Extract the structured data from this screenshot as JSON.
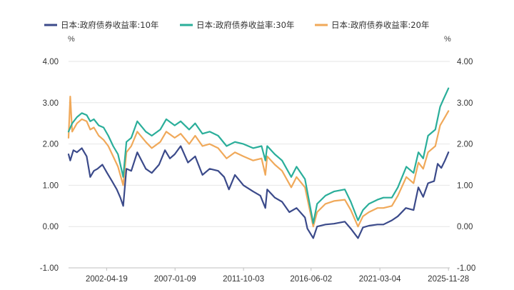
{
  "chart_data": {
    "type": "line",
    "legend_position": "top-left",
    "grid": true,
    "y_unit_left": "%",
    "y_unit_right": "%",
    "ylim": [
      -1.0,
      4.0
    ],
    "y_ticks": [
      "4.00",
      "3.00",
      "2.00",
      "1.00",
      "0.00",
      "-1.00"
    ],
    "y_tick_values": [
      4,
      3,
      2,
      1,
      0,
      -1
    ],
    "x_ticks": [
      "2002-04-19",
      "2007-01-09",
      "2011-10-03",
      "2016-06-02",
      "2021-03-04",
      "2025-11-28"
    ],
    "xlim": [
      "1999-09-01",
      "2025-12-31"
    ],
    "series": [
      {
        "name": "日本:政府债券收益率:10年",
        "color": "#3b4a8a",
        "x": [
          "1999-09-01",
          "1999-10-15",
          "2000-01-01",
          "2000-04-01",
          "2000-08-01",
          "2000-12-01",
          "2001-03-01",
          "2001-06-01",
          "2001-09-01",
          "2002-01-01",
          "2002-05-01",
          "2002-09-01",
          "2003-01-01",
          "2003-04-01",
          "2003-06-12",
          "2003-09-01",
          "2004-01-01",
          "2004-06-01",
          "2005-01-01",
          "2005-06-01",
          "2005-12-01",
          "2006-05-01",
          "2006-09-01",
          "2007-01-01",
          "2007-06-01",
          "2007-12-01",
          "2008-06-01",
          "2008-12-01",
          "2009-06-01",
          "2010-01-01",
          "2010-06-01",
          "2010-10-01",
          "2011-03-01",
          "2011-10-01",
          "2012-06-01",
          "2012-12-01",
          "2013-04-05",
          "2013-05-23",
          "2013-12-01",
          "2014-06-01",
          "2014-12-01",
          "2015-06-01",
          "2016-01-01",
          "2016-03-01",
          "2016-07-27",
          "2016-11-01",
          "2017-06-01",
          "2018-01-01",
          "2018-10-01",
          "2019-03-01",
          "2019-08-30",
          "2020-01-01",
          "2020-06-01",
          "2021-01-01",
          "2021-06-01",
          "2022-01-01",
          "2022-06-01",
          "2022-12-20",
          "2023-07-01",
          "2023-10-31",
          "2024-03-01",
          "2024-07-01",
          "2024-12-01",
          "2025-03-01",
          "2025-06-01",
          "2025-09-01",
          "2025-11-28"
        ],
        "values": [
          1.75,
          1.6,
          1.85,
          1.8,
          1.9,
          1.7,
          1.2,
          1.35,
          1.4,
          1.5,
          1.3,
          1.1,
          0.9,
          0.7,
          0.5,
          1.4,
          1.35,
          1.8,
          1.4,
          1.3,
          1.5,
          1.85,
          1.65,
          1.75,
          1.95,
          1.55,
          1.7,
          1.25,
          1.4,
          1.35,
          1.2,
          0.9,
          1.25,
          1.0,
          0.85,
          0.75,
          0.45,
          0.9,
          0.7,
          0.6,
          0.35,
          0.45,
          0.22,
          -0.05,
          -0.28,
          0.0,
          0.05,
          0.07,
          0.12,
          -0.05,
          -0.28,
          -0.02,
          0.02,
          0.05,
          0.05,
          0.15,
          0.25,
          0.45,
          0.4,
          0.95,
          0.72,
          1.05,
          1.1,
          1.52,
          1.42,
          1.6,
          1.8
        ]
      },
      {
        "name": "日本:政府债券收益率:30年",
        "color": "#2aae9a",
        "x": [
          "1999-09-01",
          "1999-12-01",
          "2000-04-01",
          "2000-08-01",
          "2000-12-01",
          "2001-03-01",
          "2001-06-01",
          "2001-10-01",
          "2002-02-01",
          "2002-06-01",
          "2002-10-01",
          "2003-02-01",
          "2003-06-12",
          "2003-09-01",
          "2004-01-01",
          "2004-06-01",
          "2005-01-01",
          "2005-06-01",
          "2006-01-01",
          "2006-06-01",
          "2007-01-01",
          "2007-06-01",
          "2008-01-01",
          "2008-06-01",
          "2008-12-01",
          "2009-06-01",
          "2010-01-01",
          "2010-08-01",
          "2011-03-01",
          "2011-10-01",
          "2012-06-01",
          "2013-01-01",
          "2013-04-05",
          "2013-05-23",
          "2013-12-01",
          "2014-06-01",
          "2015-01-20",
          "2015-06-01",
          "2016-01-01",
          "2016-07-27",
          "2016-11-01",
          "2017-06-01",
          "2018-01-01",
          "2018-10-01",
          "2019-03-01",
          "2019-08-30",
          "2020-01-01",
          "2020-06-01",
          "2021-01-01",
          "2021-06-01",
          "2022-01-01",
          "2022-06-01",
          "2023-01-01",
          "2023-07-01",
          "2023-11-01",
          "2024-03-01",
          "2024-07-01",
          "2025-01-01",
          "2025-05-01",
          "2025-08-01",
          "2025-11-28"
        ],
        "values": [
          2.3,
          2.5,
          2.65,
          2.75,
          2.7,
          2.55,
          2.6,
          2.45,
          2.4,
          2.2,
          1.95,
          1.75,
          1.2,
          2.05,
          2.15,
          2.55,
          2.3,
          2.2,
          2.35,
          2.6,
          2.45,
          2.55,
          2.35,
          2.5,
          2.25,
          2.3,
          2.2,
          1.95,
          2.05,
          2.0,
          1.9,
          1.95,
          1.6,
          1.95,
          1.75,
          1.6,
          1.2,
          1.45,
          1.15,
          0.08,
          0.55,
          0.75,
          0.85,
          0.9,
          0.6,
          0.15,
          0.4,
          0.55,
          0.65,
          0.7,
          0.7,
          0.95,
          1.45,
          1.3,
          1.8,
          1.65,
          2.2,
          2.35,
          2.9,
          3.1,
          3.35
        ]
      },
      {
        "name": "日本:政府债券收益率:20年",
        "color": "#f0a95a",
        "x": [
          "1999-09-01",
          "1999-10-15",
          "1999-12-01",
          "2000-04-01",
          "2000-08-01",
          "2000-12-01",
          "2001-03-01",
          "2001-06-01",
          "2001-10-01",
          "2002-02-01",
          "2002-06-01",
          "2002-10-01",
          "2003-02-01",
          "2003-06-12",
          "2003-09-01",
          "2004-01-01",
          "2004-06-01",
          "2005-01-01",
          "2005-06-01",
          "2006-01-01",
          "2006-06-01",
          "2007-01-01",
          "2007-06-01",
          "2008-01-01",
          "2008-06-01",
          "2008-12-01",
          "2009-06-01",
          "2010-01-01",
          "2010-08-01",
          "2011-03-01",
          "2011-10-01",
          "2012-06-01",
          "2013-01-01",
          "2013-04-05",
          "2013-05-23",
          "2013-12-01",
          "2014-06-01",
          "2015-01-20",
          "2015-06-01",
          "2016-01-01",
          "2016-07-27",
          "2016-11-01",
          "2017-06-01",
          "2018-01-01",
          "2018-10-01",
          "2019-03-01",
          "2019-08-30",
          "2020-01-01",
          "2020-06-01",
          "2021-01-01",
          "2021-06-01",
          "2022-01-01",
          "2022-06-01",
          "2023-01-01",
          "2023-07-01",
          "2023-11-01",
          "2024-03-01",
          "2024-07-01",
          "2025-01-01",
          "2025-05-01",
          "2025-08-01",
          "2025-11-28"
        ],
        "values": [
          2.15,
          3.15,
          2.3,
          2.5,
          2.6,
          2.55,
          2.35,
          2.4,
          2.2,
          2.1,
          1.95,
          1.7,
          1.45,
          1.0,
          1.8,
          1.95,
          2.3,
          2.05,
          1.9,
          2.05,
          2.3,
          2.15,
          2.25,
          2.0,
          2.2,
          1.95,
          2.0,
          1.9,
          1.65,
          1.8,
          1.7,
          1.6,
          1.65,
          1.25,
          1.7,
          1.5,
          1.35,
          0.95,
          1.2,
          0.95,
          0.0,
          0.35,
          0.55,
          0.62,
          0.65,
          0.4,
          0.0,
          0.25,
          0.35,
          0.45,
          0.45,
          0.5,
          0.75,
          1.2,
          1.05,
          1.55,
          1.4,
          1.8,
          1.95,
          2.45,
          2.6,
          2.8
        ]
      }
    ]
  }
}
